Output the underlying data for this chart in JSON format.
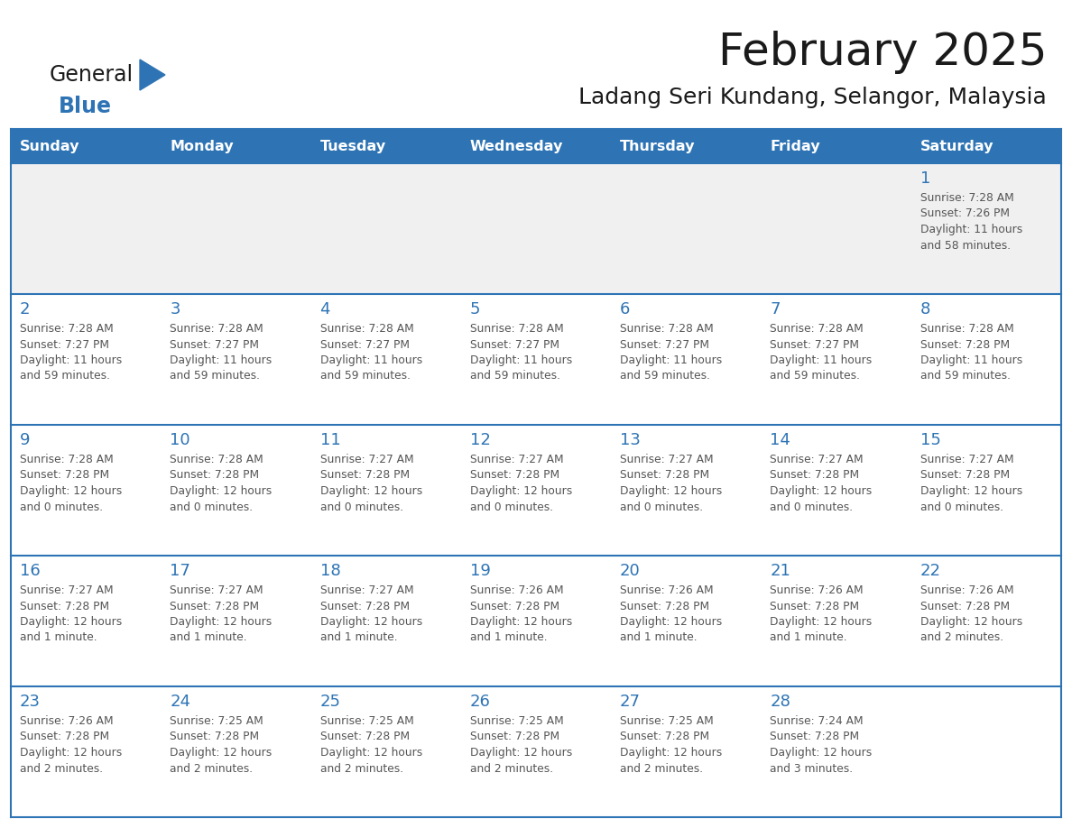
{
  "title": "February 2025",
  "subtitle": "Ladang Seri Kundang, Selangor, Malaysia",
  "header_bg": "#2E74B5",
  "header_text_color": "#FFFFFF",
  "cell_bg": "#FFFFFF",
  "first_row_bg": "#F0F0F0",
  "border_color": "#2E74B5",
  "title_color": "#1A1A1A",
  "day_num_color": "#2E74B5",
  "info_text_color": "#555555",
  "days_of_week": [
    "Sunday",
    "Monday",
    "Tuesday",
    "Wednesday",
    "Thursday",
    "Friday",
    "Saturday"
  ],
  "calendar": [
    [
      null,
      null,
      null,
      null,
      null,
      null,
      1
    ],
    [
      2,
      3,
      4,
      5,
      6,
      7,
      8
    ],
    [
      9,
      10,
      11,
      12,
      13,
      14,
      15
    ],
    [
      16,
      17,
      18,
      19,
      20,
      21,
      22
    ],
    [
      23,
      24,
      25,
      26,
      27,
      28,
      null
    ]
  ],
  "cell_data": {
    "1": {
      "sunrise": "7:28 AM",
      "sunset": "7:26 PM",
      "daylight": "11 hours and 58 minutes."
    },
    "2": {
      "sunrise": "7:28 AM",
      "sunset": "7:27 PM",
      "daylight": "11 hours and 59 minutes."
    },
    "3": {
      "sunrise": "7:28 AM",
      "sunset": "7:27 PM",
      "daylight": "11 hours and 59 minutes."
    },
    "4": {
      "sunrise": "7:28 AM",
      "sunset": "7:27 PM",
      "daylight": "11 hours and 59 minutes."
    },
    "5": {
      "sunrise": "7:28 AM",
      "sunset": "7:27 PM",
      "daylight": "11 hours and 59 minutes."
    },
    "6": {
      "sunrise": "7:28 AM",
      "sunset": "7:27 PM",
      "daylight": "11 hours and 59 minutes."
    },
    "7": {
      "sunrise": "7:28 AM",
      "sunset": "7:27 PM",
      "daylight": "11 hours and 59 minutes."
    },
    "8": {
      "sunrise": "7:28 AM",
      "sunset": "7:28 PM",
      "daylight": "11 hours and 59 minutes."
    },
    "9": {
      "sunrise": "7:28 AM",
      "sunset": "7:28 PM",
      "daylight": "12 hours and 0 minutes."
    },
    "10": {
      "sunrise": "7:28 AM",
      "sunset": "7:28 PM",
      "daylight": "12 hours and 0 minutes."
    },
    "11": {
      "sunrise": "7:27 AM",
      "sunset": "7:28 PM",
      "daylight": "12 hours and 0 minutes."
    },
    "12": {
      "sunrise": "7:27 AM",
      "sunset": "7:28 PM",
      "daylight": "12 hours and 0 minutes."
    },
    "13": {
      "sunrise": "7:27 AM",
      "sunset": "7:28 PM",
      "daylight": "12 hours and 0 minutes."
    },
    "14": {
      "sunrise": "7:27 AM",
      "sunset": "7:28 PM",
      "daylight": "12 hours and 0 minutes."
    },
    "15": {
      "sunrise": "7:27 AM",
      "sunset": "7:28 PM",
      "daylight": "12 hours and 0 minutes."
    },
    "16": {
      "sunrise": "7:27 AM",
      "sunset": "7:28 PM",
      "daylight": "12 hours and 1 minute."
    },
    "17": {
      "sunrise": "7:27 AM",
      "sunset": "7:28 PM",
      "daylight": "12 hours and 1 minute."
    },
    "18": {
      "sunrise": "7:27 AM",
      "sunset": "7:28 PM",
      "daylight": "12 hours and 1 minute."
    },
    "19": {
      "sunrise": "7:26 AM",
      "sunset": "7:28 PM",
      "daylight": "12 hours and 1 minute."
    },
    "20": {
      "sunrise": "7:26 AM",
      "sunset": "7:28 PM",
      "daylight": "12 hours and 1 minute."
    },
    "21": {
      "sunrise": "7:26 AM",
      "sunset": "7:28 PM",
      "daylight": "12 hours and 1 minute."
    },
    "22": {
      "sunrise": "7:26 AM",
      "sunset": "7:28 PM",
      "daylight": "12 hours and 2 minutes."
    },
    "23": {
      "sunrise": "7:26 AM",
      "sunset": "7:28 PM",
      "daylight": "12 hours and 2 minutes."
    },
    "24": {
      "sunrise": "7:25 AM",
      "sunset": "7:28 PM",
      "daylight": "12 hours and 2 minutes."
    },
    "25": {
      "sunrise": "7:25 AM",
      "sunset": "7:28 PM",
      "daylight": "12 hours and 2 minutes."
    },
    "26": {
      "sunrise": "7:25 AM",
      "sunset": "7:28 PM",
      "daylight": "12 hours and 2 minutes."
    },
    "27": {
      "sunrise": "7:25 AM",
      "sunset": "7:28 PM",
      "daylight": "12 hours and 2 minutes."
    },
    "28": {
      "sunrise": "7:24 AM",
      "sunset": "7:28 PM",
      "daylight": "12 hours and 3 minutes."
    }
  },
  "logo_text1": "General",
  "logo_text2": "Blue",
  "logo_color1": "#1A1A1A",
  "logo_color2": "#2E74B5",
  "logo_triangle_color": "#2E74B5"
}
